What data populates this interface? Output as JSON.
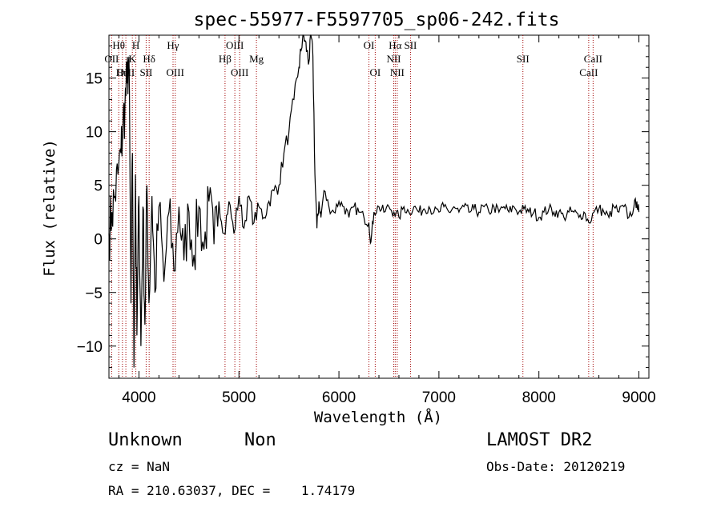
{
  "chart_data": {
    "type": "line",
    "title": "spec-55977-F5597705_sp06-242.fits",
    "xlabel": "Wavelength (Å)",
    "ylabel": "Flux (relative)",
    "xlim": [
      3700,
      9100
    ],
    "ylim": [
      -13,
      19
    ],
    "xticks": [
      4000,
      5000,
      6000,
      7000,
      8000,
      9000
    ],
    "yticks": [
      -10,
      -5,
      0,
      5,
      10,
      15
    ],
    "ytick_labels": [
      "−10",
      "−5",
      "0",
      "5",
      "10",
      "15"
    ],
    "grid": false,
    "series": [
      {
        "x": [
          3700,
          3730,
          3760,
          3790,
          3820,
          3840,
          3860,
          3880,
          3900,
          3920,
          3935,
          3950,
          3965,
          3980,
          4000,
          4020,
          4040,
          4060,
          4080,
          4100,
          4130,
          4160,
          4200,
          4250,
          4300,
          4350,
          4400,
          4450,
          4500,
          4550,
          4600,
          4650,
          4700,
          4750,
          4800,
          4850,
          4900,
          4950,
          5000,
          5050,
          5100,
          5150,
          5200,
          5250,
          5300,
          5350,
          5400,
          5450,
          5500,
          5550,
          5600,
          5620,
          5640,
          5660,
          5680,
          5700,
          5720,
          5740,
          5760,
          5780,
          5800,
          5820,
          5850,
          5900,
          5950,
          6000,
          6050,
          6100,
          6150,
          6200,
          6250,
          6300,
          6320,
          6350,
          6400,
          6450,
          6500,
          6550,
          6600,
          6650,
          6700,
          6750,
          6800,
          6850,
          6900,
          6950,
          7000,
          7050,
          7100,
          7150,
          7200,
          7250,
          7300,
          7350,
          7400,
          7450,
          7500,
          7550,
          7600,
          7650,
          7700,
          7750,
          7800,
          7850,
          7900,
          7950,
          8000,
          8050,
          8100,
          8150,
          8200,
          8250,
          8300,
          8350,
          8400,
          8450,
          8500,
          8550,
          8600,
          8650,
          8700,
          8750,
          8800,
          8850,
          8900,
          8950,
          8980,
          9000
        ],
        "y": [
          0.5,
          2.5,
          4.0,
          6.0,
          8.0,
          10.5,
          12.5,
          14.5,
          17.0,
          -6.0,
          8.0,
          -12.0,
          6.0,
          -9.0,
          4.0,
          -10.0,
          3.0,
          -8.0,
          5.0,
          -6.0,
          4.0,
          -5.0,
          3.0,
          -4.0,
          2.5,
          -3.0,
          3.0,
          -2.0,
          2.5,
          -1.5,
          3.0,
          -1.0,
          3.5,
          -0.5,
          3.5,
          0.5,
          3.5,
          0.5,
          4.0,
          1.0,
          4.0,
          1.5,
          3.0,
          2.0,
          3.5,
          4.5,
          5.0,
          8.0,
          10.0,
          13.0,
          16.0,
          17.5,
          19.0,
          18.5,
          17.5,
          16.5,
          19.0,
          17.0,
          6.0,
          1.0,
          3.5,
          2.0,
          4.5,
          3.0,
          2.5,
          3.5,
          3.0,
          2.0,
          3.0,
          2.5,
          2.0,
          1.5,
          -0.3,
          2.5,
          3.0,
          2.5,
          3.0,
          2.5,
          2.0,
          3.0,
          2.5,
          3.0,
          2.5,
          2.8,
          3.0,
          2.5,
          2.5,
          3.0,
          2.5,
          3.0,
          2.5,
          3.0,
          2.5,
          2.8,
          2.5,
          3.0,
          2.5,
          3.0,
          2.5,
          3.0,
          2.5,
          3.0,
          2.5,
          2.8,
          2.5,
          2.5,
          2.0,
          2.5,
          2.8,
          2.5,
          2.5,
          2.0,
          2.5,
          2.5,
          2.0,
          2.5,
          1.5,
          2.5,
          2.8,
          2.5,
          2.0,
          3.0,
          2.5,
          3.0,
          2.0,
          3.0,
          3.5,
          2.5
        ]
      }
    ],
    "line_markers": [
      {
        "wl": 3727,
        "label": "OII",
        "row": "up"
      },
      {
        "wl": 3798,
        "label": "Hθ",
        "row": "top"
      },
      {
        "wl": 3835,
        "label": "Hη",
        "row": "mid"
      },
      {
        "wl": 3869,
        "label": "OIII",
        "row": "mid"
      },
      {
        "wl": 3934,
        "label": "K",
        "row": "up"
      },
      {
        "wl": 3969,
        "label": "H",
        "row": "top"
      },
      {
        "wl": 4072,
        "label": "SII",
        "row": "mid"
      },
      {
        "wl": 4102,
        "label": "Hδ",
        "row": "up"
      },
      {
        "wl": 4341,
        "label": "Hγ",
        "row": "top"
      },
      {
        "wl": 4363,
        "label": "OIII",
        "row": "mid"
      },
      {
        "wl": 4861,
        "label": "Hβ",
        "row": "up"
      },
      {
        "wl": 4959,
        "label": "OIII",
        "row": "top"
      },
      {
        "wl": 5007,
        "label": "OIII",
        "row": "mid"
      },
      {
        "wl": 5175,
        "label": "Mg",
        "row": "up"
      },
      {
        "wl": 6300,
        "label": "OI",
        "row": "top"
      },
      {
        "wl": 6363,
        "label": "OI",
        "row": "mid"
      },
      {
        "wl": 6548,
        "label": "NII",
        "row": "up"
      },
      {
        "wl": 6563,
        "label": "Hα",
        "row": "top"
      },
      {
        "wl": 6583,
        "label": "NII",
        "row": "mid"
      },
      {
        "wl": 6716,
        "label": "SII",
        "row": "top"
      },
      {
        "wl": 7840,
        "label": "SII",
        "row": "up"
      },
      {
        "wl": 8498,
        "label": "CaII",
        "row": "mid"
      },
      {
        "wl": 8542,
        "label": "CaII",
        "row": "up"
      }
    ]
  },
  "footer": {
    "object_class": "Unknown",
    "subclass": "Non",
    "survey": "LAMOST DR2",
    "cz": "cz = NaN",
    "obs_date": "Obs-Date: 20120219",
    "coords": "RA = 210.63037, DEC =    1.74179"
  },
  "colors": {
    "spectrum": "#000000",
    "line_marker": "#a00000"
  }
}
